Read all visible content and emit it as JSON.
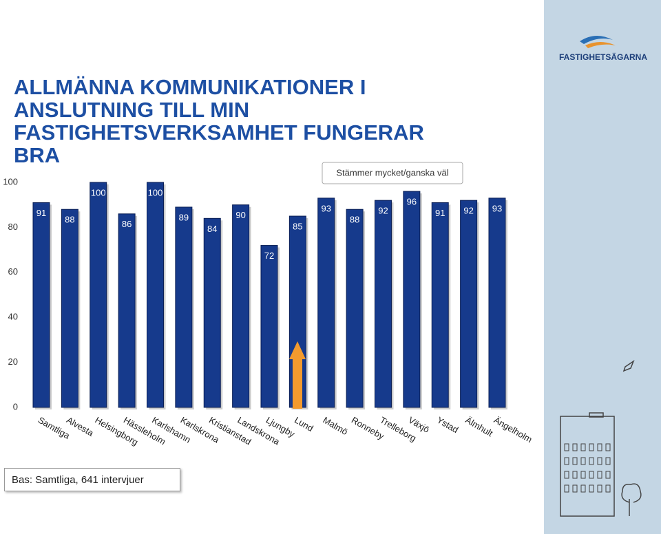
{
  "logo": "FASTIGHETSÄGARNA",
  "footnote": "Bas: Samtliga, 641 intervjuer",
  "chart_data": {
    "type": "bar",
    "title": "ALLMÄNNA KOMMUNIKATIONER I ANSLUTNING TILL MIN FASTIGHETSVERKSAMHET FUNGERAR BRA",
    "categories": [
      "Samtliga",
      "Alvesta",
      "Helsingborg",
      "Hässleholm",
      "Karlshamn",
      "Karlskrona",
      "Kristianstad",
      "Landskrona",
      "Ljungby",
      "Lund",
      "Malmö",
      "Ronneby",
      "Trelleborg",
      "Växjö",
      "Ystad",
      "Älmhult",
      "Ängelholm"
    ],
    "series": [
      {
        "name": "Stämmer mycket/ganska väl",
        "color": "#163a8c",
        "values": [
          91,
          88,
          100,
          86,
          100,
          89,
          84,
          90,
          72,
          85,
          93,
          88,
          92,
          96,
          91,
          92,
          93
        ]
      }
    ],
    "ylim": [
      0,
      100
    ],
    "yticks": [
      0,
      20,
      40,
      60,
      80,
      100
    ],
    "grid": false,
    "legend": "top-right"
  }
}
